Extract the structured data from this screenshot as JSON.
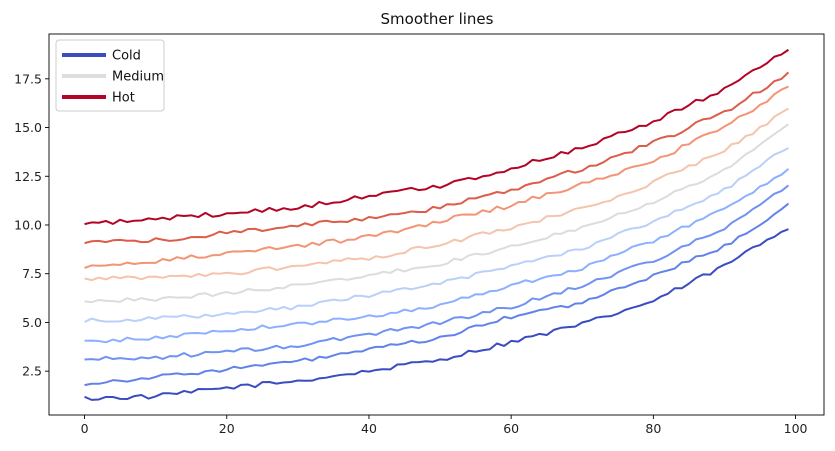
{
  "chart_data": {
    "type": "line",
    "title": "Smoother lines",
    "xlabel": "",
    "ylabel": "",
    "xlim": [
      -5,
      104
    ],
    "ylim": [
      0.25,
      19.8
    ],
    "xticks": [
      0,
      20,
      40,
      60,
      80,
      100
    ],
    "yticks": [
      2.5,
      5.0,
      7.5,
      10.0,
      12.5,
      15.0,
      17.5
    ],
    "ytick_labels": [
      "2.5",
      "5.0",
      "7.5",
      "10.0",
      "12.5",
      "15.0",
      "17.5"
    ],
    "legend": {
      "placement": "top-left",
      "entries": [
        {
          "label": "Cold",
          "color": "#3b4cc0"
        },
        {
          "label": "Medium",
          "color": "#dddddd"
        },
        {
          "label": "Hot",
          "color": "#b40426"
        }
      ]
    },
    "series": [
      {
        "color": "#3b4cc0",
        "x": [
          0,
          10,
          20,
          30,
          40,
          50,
          60,
          70,
          80,
          90,
          99
        ],
        "y": [
          1.1,
          1.2,
          1.65,
          2.0,
          2.5,
          3.1,
          4.0,
          4.9,
          6.1,
          7.9,
          9.9
        ],
        "noise": 0.12
      },
      {
        "color": "#6282ea",
        "x": [
          0,
          10,
          20,
          30,
          40,
          50,
          60,
          70,
          80,
          90,
          99
        ],
        "y": [
          1.85,
          2.2,
          2.6,
          3.0,
          3.6,
          4.2,
          5.3,
          6.0,
          7.4,
          8.9,
          11.0
        ],
        "noise": 0.1
      },
      {
        "color": "#6f92f3",
        "x": [
          0,
          10,
          20,
          30,
          40,
          50,
          60,
          70,
          80,
          90,
          99
        ],
        "y": [
          3.1,
          3.2,
          3.5,
          3.8,
          4.4,
          5.0,
          5.8,
          6.9,
          8.2,
          9.8,
          12.0
        ],
        "noise": 0.11
      },
      {
        "color": "#8db0fe",
        "x": [
          0,
          10,
          20,
          30,
          40,
          50,
          60,
          70,
          80,
          90,
          99
        ],
        "y": [
          4.0,
          4.2,
          4.6,
          4.9,
          5.3,
          5.9,
          6.9,
          7.8,
          9.2,
          10.8,
          12.9
        ],
        "noise": 0.1
      },
      {
        "color": "#b9d0f9",
        "x": [
          0,
          10,
          20,
          30,
          40,
          50,
          60,
          70,
          80,
          90,
          99
        ],
        "y": [
          5.1,
          5.2,
          5.4,
          5.8,
          6.4,
          7.0,
          7.9,
          8.8,
          10.2,
          11.8,
          14.0
        ],
        "noise": 0.1
      },
      {
        "color": "#dddcdc",
        "x": [
          0,
          10,
          20,
          30,
          40,
          50,
          60,
          70,
          80,
          90,
          99
        ],
        "y": [
          6.1,
          6.2,
          6.5,
          6.9,
          7.4,
          8.0,
          8.9,
          9.9,
          11.2,
          12.8,
          15.2
        ],
        "noise": 0.1
      },
      {
        "color": "#f5c4ac",
        "x": [
          0,
          10,
          20,
          30,
          40,
          50,
          60,
          70,
          80,
          90,
          99
        ],
        "y": [
          7.2,
          7.3,
          7.5,
          7.9,
          8.3,
          9.0,
          9.9,
          10.8,
          12.2,
          13.8,
          15.9
        ],
        "noise": 0.12
      },
      {
        "color": "#f39475",
        "x": [
          0,
          10,
          20,
          30,
          40,
          50,
          60,
          70,
          80,
          90,
          99
        ],
        "y": [
          7.9,
          8.1,
          8.6,
          8.9,
          9.4,
          10.2,
          11.0,
          12.1,
          13.3,
          15.0,
          17.1
        ],
        "noise": 0.12
      },
      {
        "color": "#dc5d4a",
        "x": [
          0,
          10,
          20,
          30,
          40,
          50,
          60,
          70,
          80,
          90,
          99
        ],
        "y": [
          9.1,
          9.2,
          9.6,
          10.0,
          10.3,
          10.9,
          11.8,
          12.9,
          14.2,
          15.8,
          17.8
        ],
        "noise": 0.12
      },
      {
        "color": "#b40426",
        "x": [
          0,
          10,
          20,
          30,
          40,
          50,
          60,
          70,
          80,
          90,
          99
        ],
        "y": [
          10.0,
          10.3,
          10.6,
          10.9,
          11.5,
          12.0,
          12.9,
          14.0,
          15.3,
          17.0,
          19.0
        ],
        "noise": 0.12
      }
    ]
  }
}
